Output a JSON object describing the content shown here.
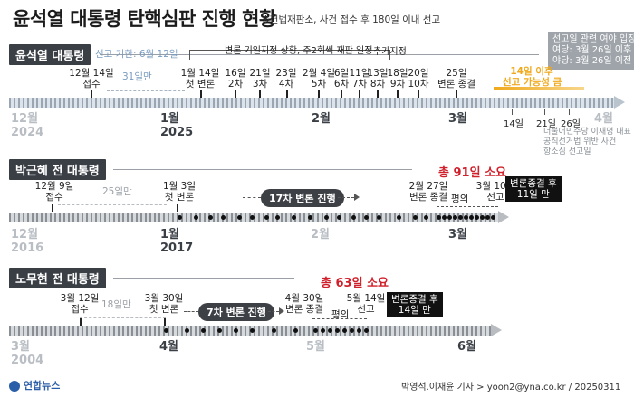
{
  "title": "윤석열 대통령 탄핵심판 진행 현황",
  "note": "※헌법재판소, 사건 접수 후 180일 이내 선고",
  "yoon": {
    "label": "윤석열 대통령",
    "deadline": "선고 기한: 6월 12일",
    "bracket_label": "변론 기일지정 상황, 주2회씩 재판 일정",
    "extra_label": "추가지정",
    "events": [
      {
        "text": "12월 14일\n접수"
      },
      {
        "text": "1월 14일\n첫 변론"
      },
      {
        "text": "16일\n2차"
      },
      {
        "text": "21일\n3차"
      },
      {
        "text": "23일\n4차"
      },
      {
        "text": "2월 4일\n5차"
      },
      {
        "text": "6일\n6차"
      },
      {
        "text": "11일\n7차"
      },
      {
        "text": "13일\n8차"
      },
      {
        "text": "18일\n9차"
      },
      {
        "text": "20일\n10차"
      },
      {
        "text": "25일\n변론 종결"
      }
    ],
    "gap": "31일만",
    "orange_text": "14일 이후\n선고 가능성 큼",
    "months": [
      {
        "label": "12월",
        "year": "2024",
        "gray": true
      },
      {
        "label": "1월",
        "year": "2025",
        "gray": false
      },
      {
        "label": "2월",
        "year": "",
        "gray": false
      },
      {
        "label": "3월",
        "year": "",
        "gray": false
      },
      {
        "label": "4월",
        "year": "",
        "gray": true
      }
    ],
    "march_ticks": [
      "14일",
      "21일",
      "26일"
    ],
    "graybox": "선고일 관련 여야 입장\n여당: 3월 26일 이후\n야당: 3월 26일 이전",
    "small_note": "더불어민주당 이재명 대표\n공직선거법 위반 사건\n항소심 선고일"
  },
  "park": {
    "label": "박근혜 전 대통령",
    "events": [
      {
        "text": "12월 9일\n접수"
      },
      {
        "text": "1월 3일\n첫 변론"
      },
      {
        "text": "2월 27일\n변론 종결"
      },
      {
        "text": "평의"
      },
      {
        "text": "3월 10일\n선고"
      }
    ],
    "gap": "25일만",
    "pill": "17차 변론 진행",
    "total": "총 91일 소요",
    "after": "변론종결 후\n11일 만",
    "months": [
      {
        "label": "12월",
        "year": "2016",
        "gray": true
      },
      {
        "label": "1월",
        "year": "2017",
        "gray": false
      },
      {
        "label": "2월",
        "year": "",
        "gray": true
      },
      {
        "label": "3월",
        "year": "",
        "gray": false
      }
    ]
  },
  "roh": {
    "label": "노무현 전 대통령",
    "events": [
      {
        "text": "3월 12일\n접수"
      },
      {
        "text": "3월 30일\n첫 변론"
      },
      {
        "text": "4월 30일\n변론 종결"
      },
      {
        "text": "평의"
      },
      {
        "text": "5월 14일\n선고"
      }
    ],
    "gap": "18일만",
    "pill": "7차 변론 진행",
    "total": "총 63일 소요",
    "after": "변론종결 후\n14일 만",
    "months": [
      {
        "label": "3월",
        "year": "2004",
        "gray": true
      },
      {
        "label": "4월",
        "year": "",
        "gray": false
      },
      {
        "label": "5월",
        "year": "",
        "gray": true
      },
      {
        "label": "6월",
        "year": "",
        "gray": false
      }
    ]
  },
  "footer": {
    "logo": "연합뉴스",
    "credit": "박영석.이재윤 기자 > yoon2@yna.co.kr / 20250311"
  },
  "chart_data": {
    "type": "table",
    "title": "윤석열 대통령 탄핵심판 진행 현황",
    "series": [
      {
        "name": "윤석열 대통령",
        "events": [
          "12월 14일 접수",
          "1월 14일 첫 변론",
          "2월 25일 변론 종결"
        ]
      },
      {
        "name": "박근혜 전 대통령",
        "events": [
          "12월 9일 접수",
          "1월 3일 첫 변론",
          "2월 27일 변론 종결",
          "3월 10일 선고"
        ],
        "total": "총 91일 소요"
      },
      {
        "name": "노무현 전 대통령",
        "events": [
          "3월 12일 접수",
          "3월 30일 첫 변론",
          "4월 30일 변론 종결",
          "5월 14일 선고"
        ],
        "total": "총 63일 소요"
      }
    ]
  }
}
